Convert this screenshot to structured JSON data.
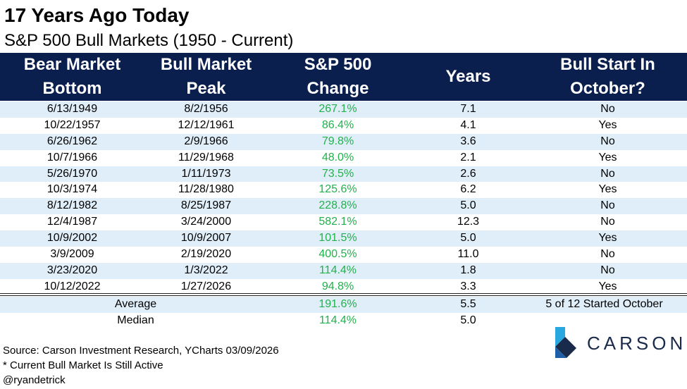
{
  "header": {
    "title": "17 Years Ago Today",
    "subtitle": "S&P 500 Bull Markets (1950 - Current)"
  },
  "chart_data": {
    "type": "table",
    "columns": [
      {
        "line1": "Bear Market",
        "line2": "Bottom"
      },
      {
        "line1": "Bull Market",
        "line2": "Peak"
      },
      {
        "line1": "S&P 500",
        "line2": "Change"
      },
      {
        "line1": "Years",
        "line2": ""
      },
      {
        "line1": "Bull Start In",
        "line2": "October?"
      }
    ],
    "rows": [
      [
        "6/13/1949",
        "8/2/1956",
        "267.1%",
        "7.1",
        "No"
      ],
      [
        "10/22/1957",
        "12/12/1961",
        "86.4%",
        "4.1",
        "Yes"
      ],
      [
        "6/26/1962",
        "2/9/1966",
        "79.8%",
        "3.6",
        "No"
      ],
      [
        "10/7/1966",
        "11/29/1968",
        "48.0%",
        "2.1",
        "Yes"
      ],
      [
        "5/26/1970",
        "1/11/1973",
        "73.5%",
        "2.6",
        "No"
      ],
      [
        "10/3/1974",
        "11/28/1980",
        "125.6%",
        "6.2",
        "Yes"
      ],
      [
        "8/12/1982",
        "8/25/1987",
        "228.8%",
        "5.0",
        "No"
      ],
      [
        "12/4/1987",
        "3/24/2000",
        "582.1%",
        "12.3",
        "No"
      ],
      [
        "10/9/2002",
        "10/9/2007",
        "101.5%",
        "5.0",
        "Yes"
      ],
      [
        "3/9/2009",
        "2/19/2020",
        "400.5%",
        "11.0",
        "No"
      ],
      [
        "3/23/2020",
        "1/3/2022",
        "114.4%",
        "1.8",
        "No"
      ],
      [
        "10/12/2022",
        "1/27/2026",
        "94.8%",
        "3.3",
        "Yes"
      ]
    ],
    "summary": [
      {
        "label": "Average",
        "change": "191.6%",
        "years": "5.5",
        "october": "5 of 12 Started October"
      },
      {
        "label": "Median",
        "change": "114.4%",
        "years": "5.0",
        "october": ""
      }
    ]
  },
  "footer": {
    "source": "Source: Carson Investment Research, YCharts 03/09/2026",
    "note": "* Current Bull Market Is Still Active",
    "handle": "@ryandetrick"
  },
  "logo": {
    "text": "CARSON",
    "icon": "carson-chevron-icon"
  },
  "colors": {
    "header_bg": "#0b1f4e",
    "band": "#dfeef9",
    "positive": "#22b14c"
  }
}
